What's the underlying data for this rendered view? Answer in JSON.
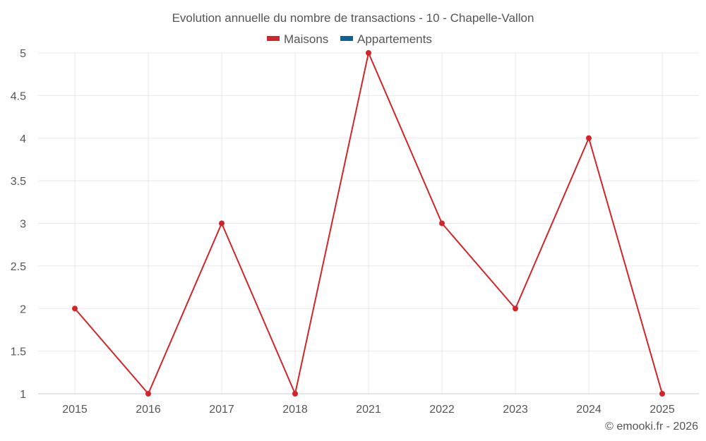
{
  "chart_data": {
    "type": "line",
    "title": "Evolution annuelle du nombre de transactions - 10 - Chapelle-Vallon",
    "categories": [
      "2015",
      "2016",
      "2017",
      "2018",
      "2021",
      "2022",
      "2023",
      "2024",
      "2025"
    ],
    "series": [
      {
        "name": "Maisons",
        "color": "#d0262b",
        "values": [
          2,
          1,
          3,
          1,
          5,
          3,
          2,
          4,
          1
        ]
      },
      {
        "name": "Appartements",
        "color": "#0d6196",
        "values": [
          null,
          null,
          null,
          null,
          null,
          null,
          null,
          null,
          null
        ]
      }
    ],
    "ylim": [
      1,
      5
    ],
    "yticks": [
      "1",
      "1.5",
      "2",
      "2.5",
      "3",
      "3.5",
      "4",
      "4.5",
      "5"
    ],
    "grid": true,
    "legend_position": "top-center",
    "xlabel": "",
    "ylabel": ""
  },
  "credit": "© emooki.fr - 2026"
}
